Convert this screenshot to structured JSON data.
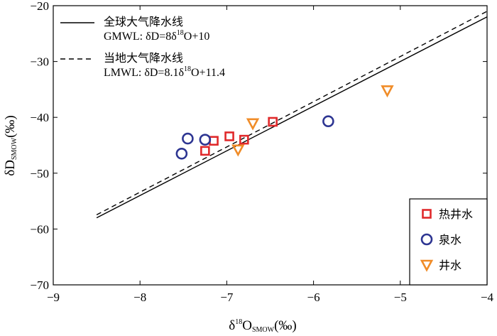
{
  "chart_data": {
    "type": "scatter",
    "x": {
      "prefix": "δ",
      "sup": "18",
      "main": "O",
      "sub": "SMOW",
      "unit": "(‰)"
    },
    "y": {
      "main": "δD",
      "sub": "SMOW",
      "unit": "(‰)"
    },
    "xlim": [
      -9,
      -4
    ],
    "ylim": [
      -70,
      -20
    ],
    "x_ticks": [
      -9,
      -8,
      -7,
      -6,
      -5,
      -4
    ],
    "y_ticks": [
      -70,
      -60,
      -50,
      -40,
      -30,
      -20
    ],
    "x_tick_labels": [
      "−9",
      "−8",
      "−7",
      "−6",
      "−5",
      "−4"
    ],
    "y_tick_labels": [
      "−70",
      "−60",
      "−50",
      "−40",
      "−30",
      "−20"
    ],
    "lines": [
      {
        "name": "全球大气降水线",
        "style": "solid",
        "slope": 8,
        "intercept": 10,
        "x_range": [
          -8.5,
          -4
        ],
        "eq": {
          "a": "GMWL: δD=8δ",
          "sup": "18",
          "b": "O+10"
        }
      },
      {
        "name": "当地大气降水线",
        "style": "dashed",
        "slope": 8.1,
        "intercept": 11.4,
        "x_range": [
          -8.5,
          -4
        ],
        "eq": {
          "a": "LMWL: δD=8.1δ",
          "sup": "18",
          "b": "O+11.4"
        }
      }
    ],
    "series": [
      {
        "name": "热井水",
        "marker": "square",
        "color": "#e0292b",
        "points": [
          [
            -7.25,
            -46
          ],
          [
            -7.15,
            -44.2
          ],
          [
            -6.97,
            -43.4
          ],
          [
            -6.8,
            -44
          ],
          [
            -6.47,
            -40.8
          ]
        ]
      },
      {
        "name": "泉水",
        "marker": "circle",
        "color": "#2d3592",
        "points": [
          [
            -7.52,
            -46.5
          ],
          [
            -7.45,
            -43.8
          ],
          [
            -7.25,
            -44
          ],
          [
            -5.83,
            -40.7
          ]
        ]
      },
      {
        "name": "井水",
        "marker": "triangle-down",
        "color": "#f08c28",
        "points": [
          [
            -6.87,
            -45.8
          ],
          [
            -6.7,
            -41.1
          ],
          [
            -5.15,
            -35.2
          ]
        ]
      }
    ],
    "legend_position": "bottom-right",
    "grid": false
  }
}
